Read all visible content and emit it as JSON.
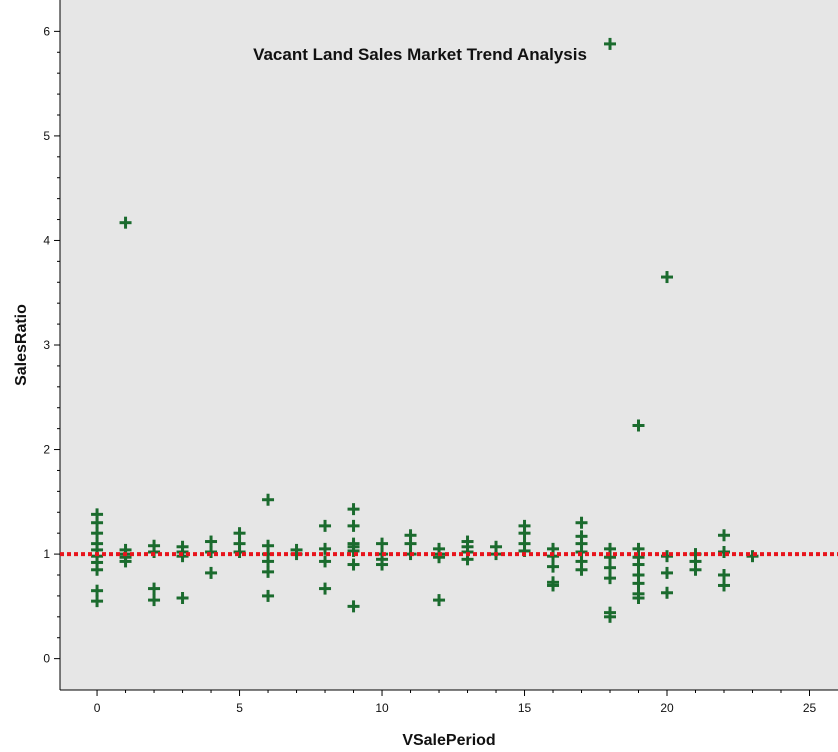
{
  "chart_data": {
    "type": "scatter",
    "title": "Vacant Land Sales Market Trend Analysis",
    "xlabel": "VSalePeriod",
    "ylabel": "SalesRatio",
    "xlim": [
      -1.3,
      26
    ],
    "ylim": [
      -0.3,
      6.3
    ],
    "xticks": [
      0,
      5,
      10,
      15,
      20,
      25
    ],
    "yticks": [
      0,
      1,
      2,
      3,
      4,
      5,
      6
    ],
    "grid": false,
    "legend": "none",
    "reference_line": {
      "y": 1.0,
      "style": "dotted"
    },
    "series": [
      {
        "marker": "plus",
        "points": [
          [
            0,
            1.38
          ],
          [
            0,
            1.3
          ],
          [
            0,
            1.2
          ],
          [
            0,
            1.1
          ],
          [
            0,
            1.04
          ],
          [
            0,
            0.98
          ],
          [
            0,
            0.92
          ],
          [
            0,
            0.85
          ],
          [
            0,
            0.65
          ],
          [
            0,
            0.55
          ],
          [
            1,
            4.17
          ],
          [
            1,
            1.04
          ],
          [
            1,
            1.0
          ],
          [
            1,
            0.97
          ],
          [
            1,
            0.93
          ],
          [
            2,
            1.08
          ],
          [
            2,
            1.02
          ],
          [
            2,
            0.67
          ],
          [
            2,
            0.56
          ],
          [
            3,
            1.07
          ],
          [
            3,
            1.02
          ],
          [
            3,
            0.98
          ],
          [
            3,
            0.58
          ],
          [
            4,
            1.12
          ],
          [
            4,
            1.02
          ],
          [
            4,
            0.82
          ],
          [
            5,
            1.2
          ],
          [
            5,
            1.1
          ],
          [
            5,
            1.02
          ],
          [
            6,
            1.52
          ],
          [
            6,
            1.08
          ],
          [
            6,
            1.0
          ],
          [
            6,
            0.93
          ],
          [
            6,
            0.83
          ],
          [
            6,
            0.6
          ],
          [
            7,
            1.04
          ],
          [
            7,
            1.0
          ],
          [
            8,
            1.27
          ],
          [
            8,
            1.05
          ],
          [
            8,
            0.93
          ],
          [
            8,
            0.67
          ],
          [
            9,
            1.43
          ],
          [
            9,
            1.27
          ],
          [
            9,
            1.1
          ],
          [
            9,
            1.07
          ],
          [
            9,
            1.03
          ],
          [
            9,
            0.9
          ],
          [
            9,
            0.5
          ],
          [
            10,
            1.1
          ],
          [
            10,
            1.0
          ],
          [
            10,
            0.95
          ],
          [
            10,
            0.9
          ],
          [
            11,
            1.18
          ],
          [
            11,
            1.1
          ],
          [
            11,
            1.0
          ],
          [
            12,
            1.05
          ],
          [
            12,
            1.0
          ],
          [
            12,
            0.97
          ],
          [
            12,
            0.56
          ],
          [
            13,
            1.12
          ],
          [
            13,
            1.07
          ],
          [
            13,
            1.02
          ],
          [
            13,
            0.95
          ],
          [
            14,
            1.07
          ],
          [
            14,
            1.0
          ],
          [
            15,
            1.27
          ],
          [
            15,
            1.2
          ],
          [
            15,
            1.1
          ],
          [
            15,
            1.03
          ],
          [
            16,
            1.05
          ],
          [
            16,
            0.98
          ],
          [
            16,
            0.88
          ],
          [
            16,
            0.73
          ],
          [
            16,
            0.7
          ],
          [
            17,
            1.3
          ],
          [
            17,
            1.17
          ],
          [
            17,
            1.1
          ],
          [
            17,
            1.02
          ],
          [
            17,
            0.93
          ],
          [
            17,
            0.85
          ],
          [
            18,
            5.88
          ],
          [
            18,
            1.05
          ],
          [
            18,
            0.97
          ],
          [
            18,
            0.87
          ],
          [
            18,
            0.77
          ],
          [
            18,
            0.44
          ],
          [
            18,
            0.4
          ],
          [
            19,
            2.23
          ],
          [
            19,
            1.05
          ],
          [
            19,
            0.97
          ],
          [
            19,
            0.9
          ],
          [
            19,
            0.8
          ],
          [
            19,
            0.72
          ],
          [
            19,
            0.62
          ],
          [
            19,
            0.58
          ],
          [
            20,
            3.65
          ],
          [
            20,
            0.98
          ],
          [
            20,
            0.82
          ],
          [
            20,
            0.63
          ],
          [
            21,
            1.0
          ],
          [
            21,
            0.93
          ],
          [
            21,
            0.85
          ],
          [
            22,
            1.18
          ],
          [
            22,
            1.02
          ],
          [
            22,
            0.8
          ],
          [
            22,
            0.7
          ],
          [
            23,
            0.98
          ]
        ]
      }
    ],
    "colors": {
      "plot_background": "#e6e6e6",
      "marker": "#1b6b2e",
      "reference_line": "#e8141c",
      "axis": "#000000"
    }
  }
}
